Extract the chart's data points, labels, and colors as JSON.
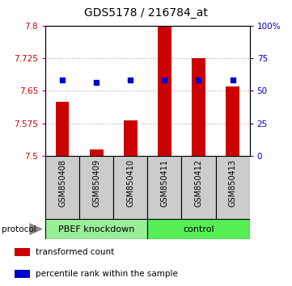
{
  "title": "GDS5178 / 216784_at",
  "samples": [
    "GSM850408",
    "GSM850409",
    "GSM850410",
    "GSM850411",
    "GSM850412",
    "GSM850413"
  ],
  "bar_values": [
    7.625,
    7.515,
    7.582,
    7.8,
    7.725,
    7.66
  ],
  "bar_bottom": 7.5,
  "percentile_values": [
    7.675,
    7.67,
    7.675,
    7.675,
    7.675,
    7.675
  ],
  "bar_color": "#cc0000",
  "dot_color": "#0000cc",
  "ylim": [
    7.5,
    7.8
  ],
  "yticks": [
    7.5,
    7.575,
    7.65,
    7.725,
    7.8
  ],
  "ytick_labels": [
    "7.5",
    "7.575",
    "7.65",
    "7.725",
    "7.8"
  ],
  "y2ticks": [
    0,
    25,
    50,
    75,
    100
  ],
  "y2tick_labels": [
    "0",
    "25",
    "50",
    "75",
    "100%"
  ],
  "groups": [
    {
      "label": "PBEF knockdown",
      "indices": [
        0,
        1,
        2
      ],
      "color": "#99ee99"
    },
    {
      "label": "control",
      "indices": [
        3,
        4,
        5
      ],
      "color": "#55ee55"
    }
  ],
  "protocol_label": "protocol",
  "legend_items": [
    {
      "color": "#cc0000",
      "label": "transformed count"
    },
    {
      "color": "#0000cc",
      "label": "percentile rank within the sample"
    }
  ],
  "grid_color": "#aaaaaa",
  "background_color": "#ffffff",
  "title_fontsize": 10,
  "tick_fontsize": 7.5,
  "label_fontsize": 7,
  "axis_left_color": "#cc0000",
  "axis_right_color": "#0000cc",
  "sample_box_color": "#cccccc",
  "bar_width": 0.4
}
